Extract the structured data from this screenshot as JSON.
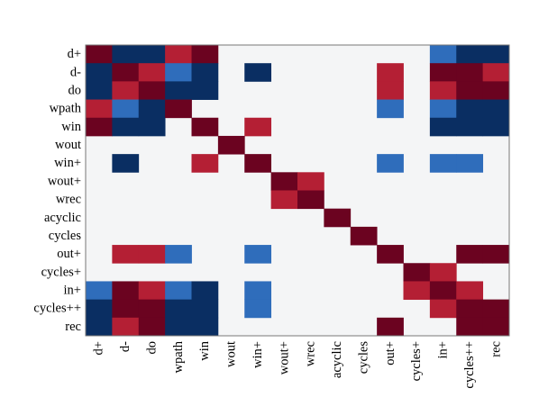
{
  "chart_data": {
    "type": "heatmap",
    "labels": [
      "d+",
      "d-",
      "do",
      "wpath",
      "win",
      "wout",
      "win+",
      "wout+",
      "wrec",
      "acyclic",
      "cycles",
      "out+",
      "cycles+",
      "in+",
      "cycles++",
      "rec"
    ],
    "value_levels": {
      "0": "blank",
      "1": "light blue",
      "2": "dark blue",
      "3": "light red",
      "4": "dark red"
    },
    "colors": {
      "background": "#f4f5f6",
      "level_1": "#2f6dbb",
      "level_2": "#0a2e62",
      "level_3": "#b41f34",
      "level_4": "#6b0320",
      "frame": "#777777"
    },
    "matrix": [
      [
        4,
        2,
        2,
        3,
        4,
        0,
        0,
        0,
        0,
        0,
        0,
        0,
        0,
        1,
        2,
        2
      ],
      [
        2,
        4,
        3,
        1,
        2,
        0,
        2,
        0,
        0,
        0,
        0,
        3,
        0,
        4,
        4,
        3
      ],
      [
        2,
        3,
        4,
        2,
        2,
        0,
        0,
        0,
        0,
        0,
        0,
        3,
        0,
        3,
        4,
        4
      ],
      [
        3,
        1,
        2,
        4,
        0,
        0,
        0,
        0,
        0,
        0,
        0,
        1,
        0,
        1,
        2,
        2
      ],
      [
        4,
        2,
        2,
        0,
        4,
        0,
        3,
        0,
        0,
        0,
        0,
        0,
        0,
        2,
        2,
        2
      ],
      [
        0,
        0,
        0,
        0,
        0,
        4,
        0,
        0,
        0,
        0,
        0,
        0,
        0,
        0,
        0,
        0
      ],
      [
        0,
        2,
        0,
        0,
        3,
        0,
        4,
        0,
        0,
        0,
        0,
        1,
        0,
        1,
        1,
        0
      ],
      [
        0,
        0,
        0,
        0,
        0,
        0,
        0,
        4,
        3,
        0,
        0,
        0,
        0,
        0,
        0,
        0
      ],
      [
        0,
        0,
        0,
        0,
        0,
        0,
        0,
        3,
        4,
        0,
        0,
        0,
        0,
        0,
        0,
        0
      ],
      [
        0,
        0,
        0,
        0,
        0,
        0,
        0,
        0,
        0,
        4,
        0,
        0,
        0,
        0,
        0,
        0
      ],
      [
        0,
        0,
        0,
        0,
        0,
        0,
        0,
        0,
        0,
        0,
        4,
        0,
        0,
        0,
        0,
        0
      ],
      [
        0,
        3,
        3,
        1,
        0,
        0,
        1,
        0,
        0,
        0,
        0,
        4,
        0,
        0,
        4,
        4
      ],
      [
        0,
        0,
        0,
        0,
        0,
        0,
        0,
        0,
        0,
        0,
        0,
        0,
        4,
        3,
        0,
        0
      ],
      [
        1,
        4,
        3,
        1,
        2,
        0,
        1,
        0,
        0,
        0,
        0,
        0,
        3,
        4,
        3,
        0
      ],
      [
        2,
        4,
        4,
        2,
        2,
        0,
        1,
        0,
        0,
        0,
        0,
        0,
        0,
        3,
        4,
        4
      ],
      [
        2,
        3,
        4,
        2,
        2,
        0,
        0,
        0,
        0,
        0,
        0,
        4,
        0,
        0,
        4,
        4
      ]
    ]
  }
}
